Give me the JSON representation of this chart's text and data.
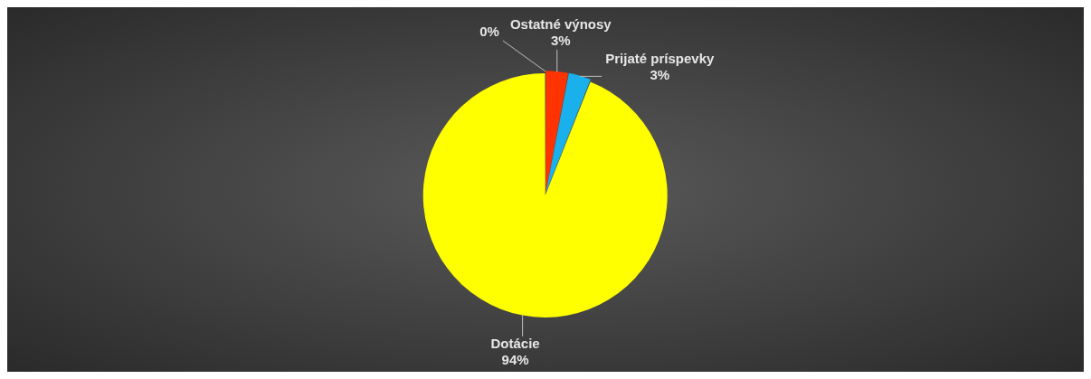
{
  "chart_data": {
    "type": "pie",
    "categories": [
      "Ostatné výnosy",
      "Prijaté príspevky",
      "Dotácie",
      null
    ],
    "values": [
      3,
      3,
      94,
      0
    ],
    "value_labels": [
      "3%",
      "3%",
      "94%",
      "0%"
    ],
    "colors": [
      "#ff3300",
      "#1ab0ec",
      "#ffff00",
      "#c03010"
    ],
    "legend": false
  }
}
